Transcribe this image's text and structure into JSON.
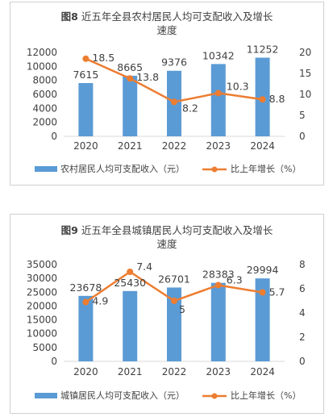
{
  "colors": {
    "bar": "#5b9bd5",
    "line": "#ed7d31",
    "text": "#404040",
    "axis": "#d9d9d9"
  },
  "charts": [
    {
      "title_prefix": "图8",
      "title_line1": "近五年全县农村居民人均可支配收入及增长",
      "title_line2": "速度",
      "chart_data": {
        "type": "bar",
        "categories": [
          "2020",
          "2021",
          "2022",
          "2023",
          "2024"
        ],
        "series": [
          {
            "name": "农村居民人均可支配收入（元）",
            "type": "bar",
            "axis": "left",
            "values": [
              7615,
              8665,
              9376,
              10342,
              11252
            ]
          },
          {
            "name": "比上年增长（%）",
            "type": "line",
            "axis": "right",
            "values": [
              18.5,
              13.8,
              8.2,
              10.3,
              8.8
            ]
          }
        ],
        "y_left": {
          "min": 0,
          "max": 12000,
          "ticks": [
            0,
            2000,
            4000,
            6000,
            8000,
            10000,
            12000
          ]
        },
        "y_right": {
          "min": 0,
          "max": 20,
          "ticks": [
            0,
            5,
            10,
            15,
            20
          ]
        },
        "legend": "bottom"
      }
    },
    {
      "title_prefix": "图9",
      "title_line1": "近五年全县城镇居民人均可支配收入及增长",
      "title_line2": "速度",
      "chart_data": {
        "type": "bar",
        "categories": [
          "2020",
          "2021",
          "2022",
          "2023",
          "2024"
        ],
        "series": [
          {
            "name": "城镇居民人均可支配收入（元）",
            "type": "bar",
            "axis": "left",
            "values": [
              23678,
              25430,
              26701,
              28383,
              29994
            ]
          },
          {
            "name": "比上年增长（%）",
            "type": "line",
            "axis": "right",
            "values": [
              4.9,
              7.4,
              5,
              6.3,
              5.7
            ]
          }
        ],
        "y_left": {
          "min": 0,
          "max": 35000,
          "ticks": [
            0,
            5000,
            10000,
            15000,
            20000,
            25000,
            30000,
            35000
          ]
        },
        "y_right": {
          "min": 0,
          "max": 8,
          "ticks": [
            0,
            2,
            4,
            6,
            8
          ]
        },
        "legend": "bottom"
      }
    }
  ]
}
